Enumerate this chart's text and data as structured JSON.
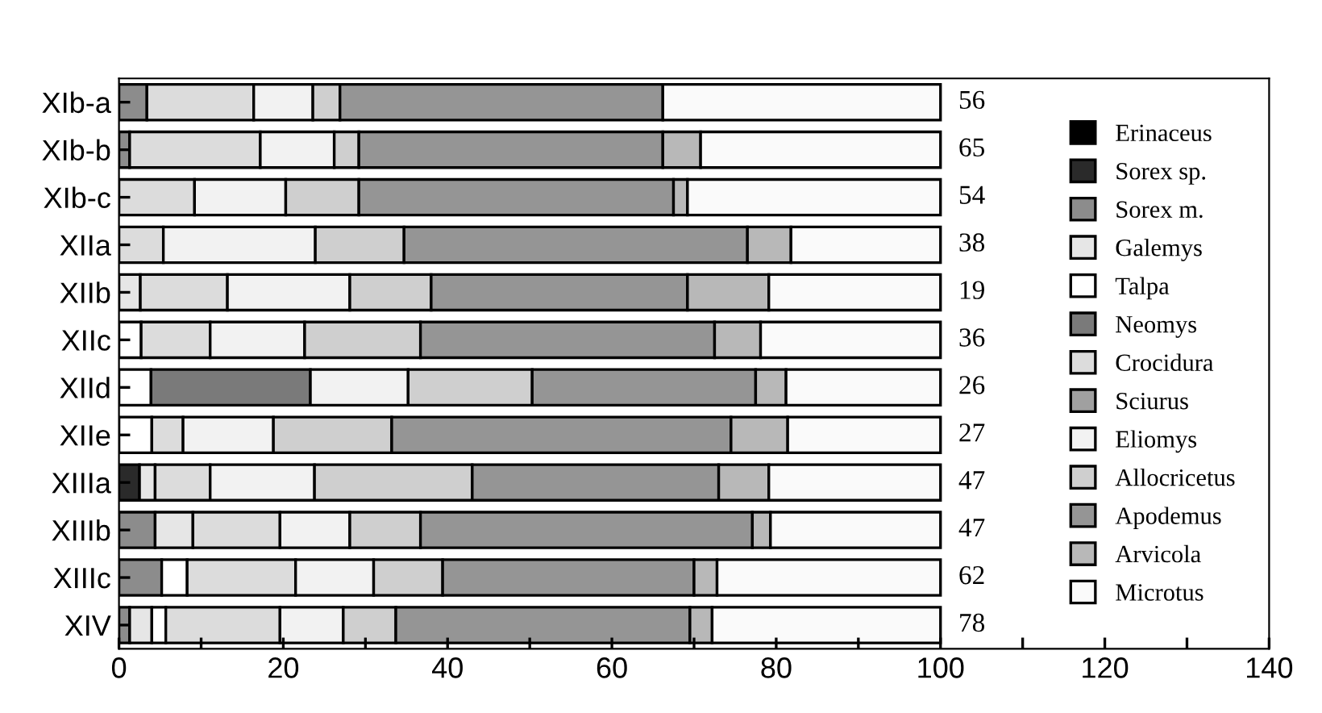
{
  "chart_data": {
    "type": "bar",
    "orientation": "horizontal",
    "stacked": true,
    "categories": [
      "XIb-a",
      "XIb-b",
      "XIb-c",
      "XIIa",
      "XIIb",
      "XIIc",
      "XIId",
      "XIIe",
      "XIIIa",
      "XIIIb",
      "XIIIc",
      "XIV"
    ],
    "series": [
      {
        "name": "Erinaceus",
        "color": "#000000",
        "values": [
          0,
          0,
          0,
          0,
          0,
          0,
          0,
          0,
          0,
          0,
          0,
          0
        ]
      },
      {
        "name": "Sorex sp.",
        "color": "#2a2a2a",
        "values": [
          0,
          0,
          0,
          0,
          0,
          0,
          0,
          0,
          2.5,
          0,
          0,
          0
        ]
      },
      {
        "name": "Sorex m.",
        "color": "#8c8c8c",
        "values": [
          3.4,
          1.3,
          0,
          0,
          0,
          0,
          0,
          0,
          0,
          4.4,
          5.2,
          1.3
        ]
      },
      {
        "name": "Galemys",
        "color": "#e6e6e6",
        "values": [
          0,
          0,
          0,
          0,
          2.6,
          0,
          0,
          0,
          1.9,
          4.6,
          0,
          2.7
        ]
      },
      {
        "name": "Talpa",
        "color": "#ffffff",
        "values": [
          0,
          0,
          0,
          0,
          0,
          2.7,
          3.9,
          4,
          0,
          0,
          3.1,
          1.7
        ]
      },
      {
        "name": "Neomys",
        "color": "#7a7a7a",
        "values": [
          0,
          0,
          0,
          0,
          0,
          0,
          19.4,
          0,
          0,
          0,
          0,
          0
        ]
      },
      {
        "name": "Crocidura",
        "color": "#dcdcdc",
        "values": [
          13,
          15.9,
          9.2,
          5.4,
          10.6,
          8.4,
          0,
          3.8,
          6.7,
          10.6,
          13.2,
          13.9
        ]
      },
      {
        "name": "Sciurus",
        "color": "#a0a0a0",
        "values": [
          0,
          0,
          0,
          0,
          0,
          0,
          0,
          0,
          0,
          0,
          0,
          0
        ]
      },
      {
        "name": "Eliomys",
        "color": "#f2f2f2",
        "values": [
          7.2,
          9,
          11.1,
          18.5,
          14.9,
          11.5,
          11.9,
          11,
          12.7,
          8.5,
          9.5,
          7.7
        ]
      },
      {
        "name": "Allocricetus",
        "color": "#cfcfcf",
        "values": [
          3.3,
          3,
          8.9,
          10.8,
          9.9,
          14.1,
          15.1,
          14.4,
          19.2,
          8.6,
          8.4,
          6.4
        ]
      },
      {
        "name": "Apodemus",
        "color": "#959595",
        "values": [
          39.3,
          37,
          38.3,
          41.8,
          31.2,
          35.8,
          27.2,
          41.3,
          30,
          40.4,
          30.6,
          35.8
        ]
      },
      {
        "name": "Arvicola",
        "color": "#b8b8b8",
        "values": [
          0,
          4.6,
          1.7,
          5.3,
          9.9,
          5.6,
          3.7,
          6.9,
          6.1,
          2.2,
          2.8,
          2.7
        ]
      },
      {
        "name": "Microtus",
        "color": "#fafafa",
        "values": [
          33.8,
          29.2,
          30.8,
          18.2,
          20.9,
          21.9,
          18.8,
          18.6,
          20.9,
          20.7,
          27.2,
          27.8
        ]
      }
    ],
    "xlim": [
      0,
      140
    ],
    "xticks": [
      0,
      {
        "value": 10,
        "label": null
      },
      20,
      {
        "value": 30,
        "label": null
      },
      40,
      {
        "value": 50,
        "label": null
      },
      60,
      {
        "value": 70,
        "label": null
      },
      80,
      {
        "value": 90,
        "label": null
      },
      100,
      {
        "value": 110,
        "label": null
      },
      120,
      {
        "value": 130,
        "label": null
      },
      140
    ],
    "annotations": [
      "56",
      "65",
      "54",
      "38",
      "19",
      "36",
      "26",
      "27",
      "47",
      "47",
      "62",
      "78"
    ],
    "grid": false,
    "legend": "right"
  }
}
